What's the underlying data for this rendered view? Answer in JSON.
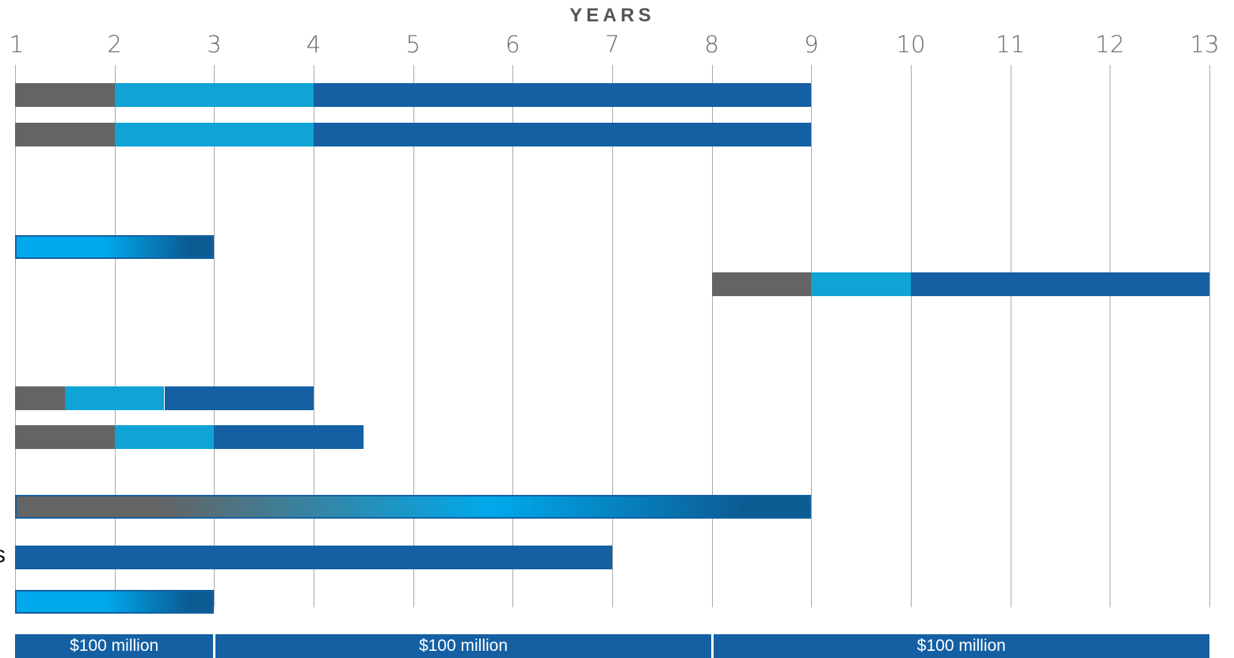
{
  "chart_data": {
    "type": "bar",
    "orientation": "horizontal-stacked-timeline",
    "axis_title": "YEARS",
    "x_ticks": [
      "1",
      "2",
      "3",
      "4",
      "5",
      "6",
      "7",
      "8",
      "9",
      "10",
      "11",
      "12",
      "13"
    ],
    "xlim": [
      1,
      13
    ],
    "grid": true,
    "colors": {
      "gray": "#646464",
      "light_blue": "#0fa3d6",
      "dark_blue": "#1460a3",
      "gradient_blue_start": "#00a9ec",
      "gradient_blue_end": "#0c5b93"
    },
    "rows": [
      {
        "segments": [
          {
            "start": 1,
            "end": 2,
            "color": "gray"
          },
          {
            "start": 2,
            "end": 4,
            "color": "light_blue"
          },
          {
            "start": 4,
            "end": 9,
            "color": "dark_blue"
          }
        ]
      },
      {
        "segments": [
          {
            "start": 1,
            "end": 2,
            "color": "gray"
          },
          {
            "start": 2,
            "end": 4,
            "color": "light_blue"
          },
          {
            "start": 4,
            "end": 9,
            "color": "dark_blue"
          }
        ]
      },
      {
        "segments": [
          {
            "start": 1,
            "end": 3,
            "color": "gradient-blue"
          }
        ]
      },
      {
        "segments": [
          {
            "start": 8,
            "end": 9,
            "color": "gray"
          },
          {
            "start": 9,
            "end": 10,
            "color": "light_blue"
          },
          {
            "start": 10,
            "end": 13,
            "color": "dark_blue"
          }
        ]
      },
      {
        "segments": [
          {
            "start": 1,
            "end": 1.5,
            "color": "gray"
          },
          {
            "start": 1.5,
            "end": 2.5,
            "color": "light_blue"
          },
          {
            "start": 2.5,
            "end": 4,
            "color": "dark_blue"
          }
        ]
      },
      {
        "segments": [
          {
            "start": 1,
            "end": 2,
            "color": "gray"
          },
          {
            "start": 2,
            "end": 3,
            "color": "light_blue"
          },
          {
            "start": 3,
            "end": 4.5,
            "color": "dark_blue"
          }
        ]
      },
      {
        "segments": [
          {
            "start": 1,
            "end": 9,
            "color": "gradient-gray-blue"
          }
        ]
      },
      {
        "segments": [
          {
            "start": 1,
            "end": 7,
            "color": "dark_blue"
          }
        ]
      },
      {
        "segments": [
          {
            "start": 1,
            "end": 3,
            "color": "gradient-blue"
          }
        ]
      }
    ],
    "funding_blocks": [
      {
        "label": "$100 million",
        "start": 1,
        "end": 3
      },
      {
        "label": "$100 million",
        "start": 3,
        "end": 8
      },
      {
        "label": "$100 million",
        "start": 8,
        "end": 13
      }
    ]
  },
  "edge_text": "s"
}
